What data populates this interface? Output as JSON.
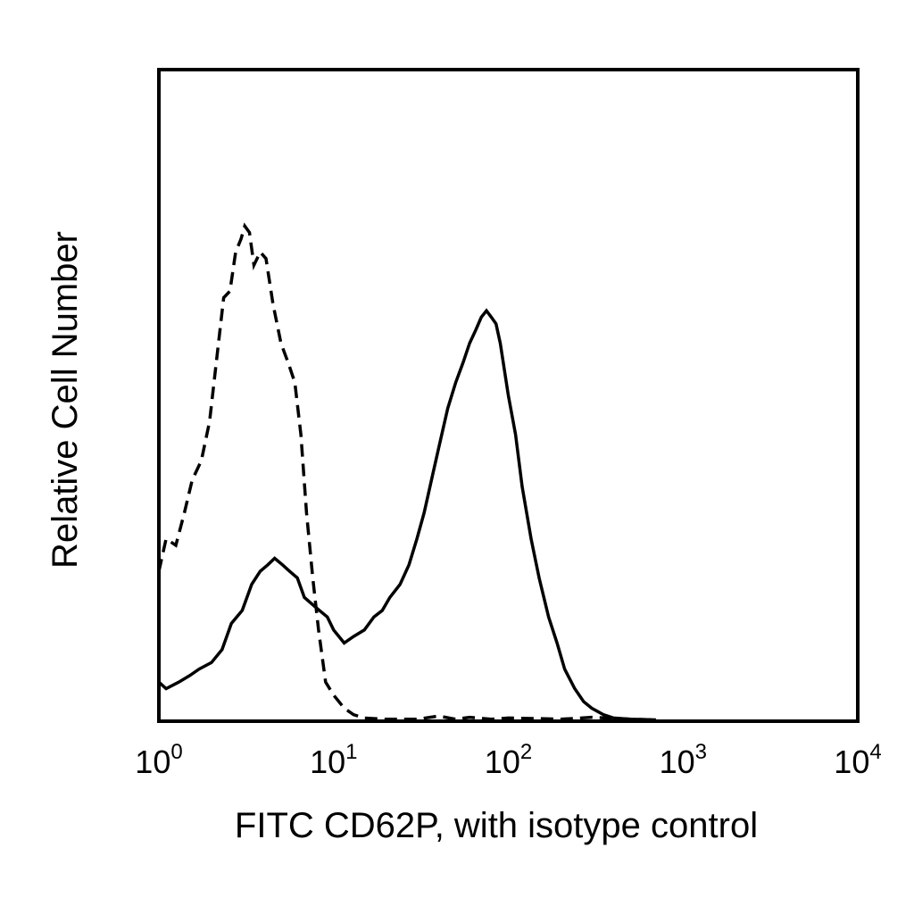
{
  "chart_data": {
    "type": "line",
    "title": "",
    "xlabel": "FITC CD62P, with isotype control",
    "ylabel": "Relative Cell Number",
    "x_scale": "log",
    "xlim": [
      1,
      10000
    ],
    "ylim": [
      0,
      100
    ],
    "grid": false,
    "legend": "none",
    "x_ticks": [
      {
        "value": 1,
        "base": "10",
        "exp": "0"
      },
      {
        "value": 10,
        "base": "10",
        "exp": "1"
      },
      {
        "value": 100,
        "base": "10",
        "exp": "2"
      },
      {
        "value": 1000,
        "base": "10",
        "exp": "3"
      },
      {
        "value": 10000,
        "base": "10",
        "exp": "4"
      }
    ],
    "series": [
      {
        "style": "dashed",
        "color": "#000000",
        "x": [
          1.0,
          1.1,
          1.25,
          1.4,
          1.55,
          1.75,
          1.95,
          2.15,
          2.35,
          2.55,
          2.75,
          2.95,
          3.1,
          3.3,
          3.5,
          3.8,
          4.1,
          4.5,
          5.0,
          5.5,
          6.0,
          6.5,
          7.0,
          7.6,
          8.2,
          9.0,
          10.0,
          11.5,
          13.0,
          15.0,
          20.0,
          30.0,
          40.0,
          50.0,
          60.0,
          80.0,
          100.0,
          150.0,
          200.0,
          300.0,
          500.0,
          700.0
        ],
        "y": [
          23,
          28,
          27,
          32,
          37,
          40,
          46,
          56,
          65,
          66,
          72,
          74,
          76,
          75,
          70,
          72,
          71,
          64,
          58,
          55,
          52,
          44,
          32,
          22,
          14,
          6,
          4,
          2,
          1,
          0.5,
          0.3,
          0.3,
          0.8,
          0.3,
          0.6,
          0.3,
          0.5,
          0.4,
          0.3,
          0.6,
          0.3,
          0.2
        ]
      },
      {
        "style": "solid",
        "color": "#000000",
        "x": [
          1.0,
          1.1,
          1.3,
          1.5,
          1.7,
          2.0,
          2.3,
          2.6,
          3.0,
          3.4,
          3.8,
          4.2,
          4.6,
          5.1,
          5.6,
          6.2,
          6.8,
          7.5,
          8.3,
          9.2,
          10.0,
          11.5,
          13.0,
          15.0,
          17.0,
          19.0,
          21.0,
          24.0,
          27.0,
          30.0,
          33.0,
          37.0,
          40.0,
          45.0,
          50.0,
          55.0,
          60.0,
          65.0,
          70.0,
          75.0,
          80.0,
          85.0,
          90.0,
          100.0,
          110.0,
          120.0,
          135.0,
          150.0,
          170.0,
          190.0,
          210.0,
          240.0,
          270.0,
          300.0,
          350.0,
          400.0,
          500.0,
          700.0
        ],
        "y": [
          6,
          5,
          6,
          7,
          8,
          9,
          11,
          15,
          17,
          21,
          23,
          24,
          25,
          24,
          23,
          22,
          19,
          18,
          17,
          16,
          14,
          12,
          13,
          14,
          16,
          17,
          19,
          21,
          24,
          28,
          32,
          38,
          42,
          48,
          52,
          55,
          58,
          60,
          62,
          63,
          62,
          61,
          58,
          50,
          44,
          36,
          28,
          22,
          16,
          12,
          8,
          5,
          3,
          2,
          1,
          0.5,
          0.3,
          0.2
        ]
      }
    ]
  }
}
